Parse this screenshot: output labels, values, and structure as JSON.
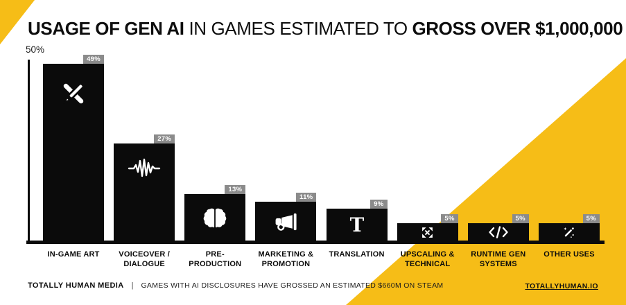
{
  "page": {
    "background": "#ffffff",
    "accent_yellow": "#F6BD17"
  },
  "title": {
    "part1_bold": "USAGE OF GEN AI",
    "part2_regular": " IN GAMES ESTIMATED TO ",
    "part3_bold": "GROSS OVER $1,000,000"
  },
  "chart_data": {
    "type": "bar",
    "title": "USAGE OF GEN AI IN GAMES ESTIMATED TO GROSS OVER $1,000,000",
    "categories": [
      "IN-GAME ART",
      "VOICEOVER / DIALOGUE",
      "PRE-PRODUCTION",
      "MARKETING & PROMOTION",
      "TRANSLATION",
      "UPSCALING & TECHNICAL",
      "RUNTIME GEN SYSTEMS",
      "OTHER USES"
    ],
    "values": [
      49,
      27,
      13,
      11,
      9,
      5,
      5,
      5
    ],
    "value_labels": [
      "49%",
      "27%",
      "13%",
      "11%",
      "9%",
      "5%",
      "5%",
      "5%"
    ],
    "display_labels": [
      "IN-GAME ART",
      "VOICEOVER /\nDIALOGUE",
      "PRE-\nPRODUCTION",
      "MARKETING &\nPROMOTION",
      "TRANSLATION",
      "UPSCALING &\nTECHNICAL",
      "RUNTIME GEN\nSYSTEMS",
      "OTHER USES"
    ],
    "icons": [
      "design-tools",
      "waveform",
      "brain",
      "megaphone",
      "text-t",
      "expand-arrows",
      "code",
      "magic-wand"
    ],
    "xlabel": "",
    "ylabel": "",
    "ylim": [
      0,
      50
    ],
    "y_tick_label": "50%",
    "bar_color": "#0b0b0b",
    "badge_color": "#8B8B8B",
    "legend": false,
    "grid": false
  },
  "footer": {
    "brand": "TOTALLY HUMAN MEDIA",
    "separator": "|",
    "note": "GAMES WITH AI DISCLOSURES HAVE GROSSED AN ESTIMATED $660M ON STEAM",
    "link": "TOTALLYHUMAN.IO"
  }
}
